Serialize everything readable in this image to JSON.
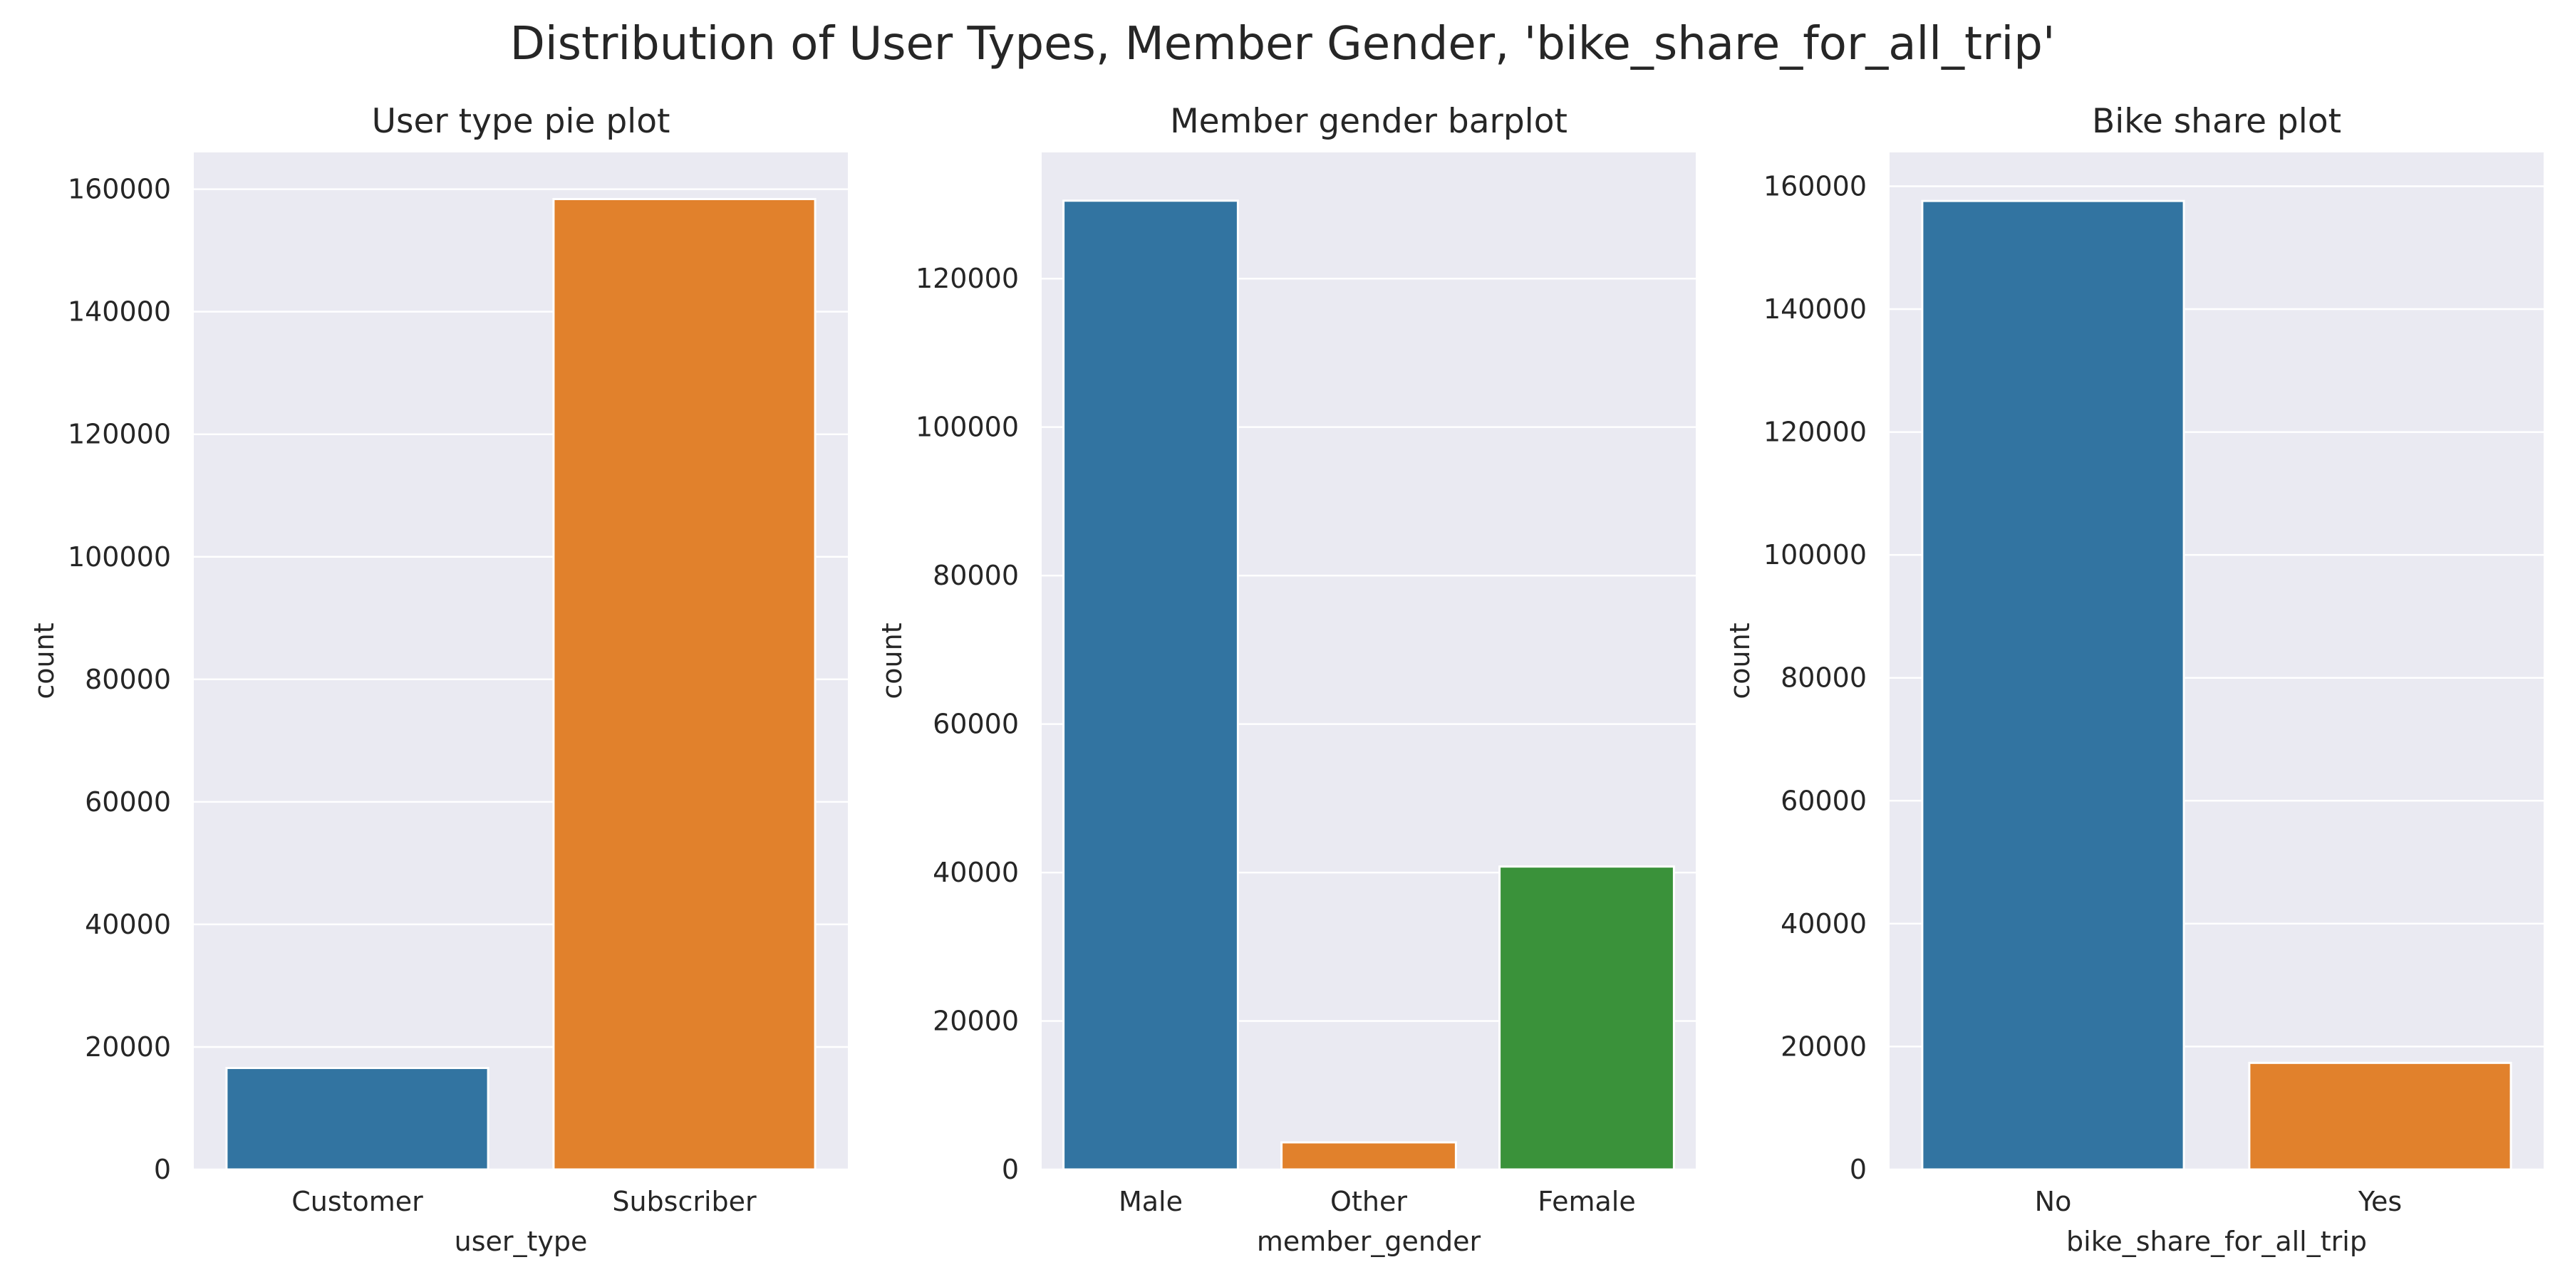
{
  "figure": {
    "title": "Distribution of User Types, Member Gender, 'bike_share_for_all_trip'"
  },
  "colors": {
    "background": "#eaeaf2",
    "grid": "#ffffff",
    "blue": "#3274a1",
    "orange": "#e1812c",
    "green": "#3a923a"
  },
  "chart_data": [
    {
      "type": "bar",
      "title": "User type pie plot",
      "xlabel": "user_type",
      "ylabel": "count",
      "categories": [
        "Customer",
        "Subscriber"
      ],
      "values": [
        16566,
        158386
      ],
      "colors": [
        "#3274a1",
        "#e1812c"
      ],
      "ylim": [
        0,
        166000
      ],
      "yticks": [
        0,
        20000,
        40000,
        60000,
        80000,
        100000,
        120000,
        140000,
        160000
      ],
      "grid": true,
      "legend": "none"
    },
    {
      "type": "bar",
      "title": "Member gender barplot",
      "xlabel": "member_gender",
      "ylabel": "count",
      "categories": [
        "Male",
        "Other",
        "Female"
      ],
      "values": [
        130500,
        3652,
        40805
      ],
      "colors": [
        "#3274a1",
        "#e1812c",
        "#3a923a"
      ],
      "ylim": [
        0,
        137000
      ],
      "yticks": [
        0,
        20000,
        40000,
        60000,
        80000,
        100000,
        120000
      ],
      "grid": true,
      "legend": "none"
    },
    {
      "type": "bar",
      "title": "Bike share plot",
      "xlabel": "bike_share_for_all_trip",
      "ylabel": "count",
      "categories": [
        "No",
        "Yes"
      ],
      "values": [
        157606,
        17346
      ],
      "colors": [
        "#3274a1",
        "#e1812c"
      ],
      "ylim": [
        0,
        165500
      ],
      "yticks": [
        0,
        20000,
        40000,
        60000,
        80000,
        100000,
        120000,
        140000,
        160000
      ],
      "grid": true,
      "legend": "none"
    }
  ]
}
